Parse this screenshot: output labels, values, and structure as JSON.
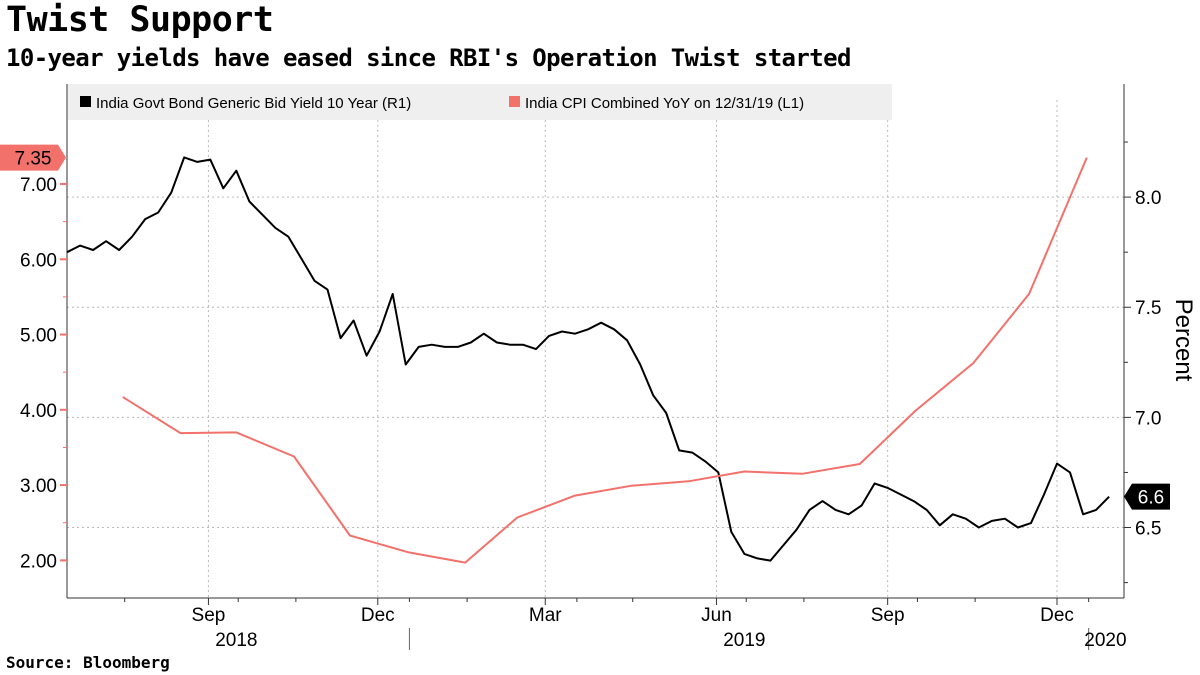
{
  "title": "Twist Support",
  "subtitle": "10-year yields have eased since RBI's Operation Twist started",
  "source": "Source: Bloomberg",
  "colors": {
    "yield": "#000000",
    "cpi": "#f2716b",
    "grid": "#bbbbbb",
    "axis": "#333333"
  },
  "chart_data": {
    "type": "line",
    "legend_placement": "top",
    "grid": true,
    "right_axis_label": "Percent",
    "left_axis": {
      "range": [
        1.5,
        7.85
      ],
      "ticks": [
        2.0,
        3.0,
        4.0,
        5.0,
        6.0,
        7.0
      ],
      "tick_labels": [
        "2.00",
        "3.00",
        "4.00",
        "5.00",
        "6.00",
        "7.00"
      ]
    },
    "right_axis": {
      "range": [
        6.18,
        8.35
      ],
      "ticks": [
        6.5,
        7.0,
        7.5,
        8.0
      ],
      "tick_labels": [
        "6.5",
        "7.0",
        "7.5",
        "8.0"
      ]
    },
    "x_axis": {
      "range": [
        "2018-07-01",
        "2020-01-20"
      ],
      "month_labels": [
        {
          "label": "Sep",
          "date": "2018-09-15"
        },
        {
          "label": "Dec",
          "date": "2018-12-15"
        },
        {
          "label": "Mar",
          "date": "2019-03-15"
        },
        {
          "label": "Jun",
          "date": "2019-06-15"
        },
        {
          "label": "Sep",
          "date": "2019-09-15"
        },
        {
          "label": "Dec",
          "date": "2019-12-15"
        }
      ],
      "year_labels": [
        {
          "label": "2018",
          "date": "2018-09-30"
        },
        {
          "label": "2019",
          "date": "2019-06-30"
        },
        {
          "label": "2020",
          "date": "2020-01-10"
        }
      ],
      "year_separators": [
        "2019-01-01",
        "2020-01-01"
      ],
      "minor_ticks": [
        "2018-08-01",
        "2018-10-01",
        "2018-11-01",
        "2019-01-01",
        "2019-02-01",
        "2019-04-01",
        "2019-05-01",
        "2019-07-01",
        "2019-08-01",
        "2019-10-01",
        "2019-11-01",
        "2020-01-01"
      ]
    },
    "series": [
      {
        "name": "India Govt Bond Generic Bid Yield 10 Year  (R1)",
        "axis": "right",
        "x": [
          "2018-07-01",
          "2018-07-08",
          "2018-07-15",
          "2018-07-22",
          "2018-07-29",
          "2018-08-05",
          "2018-08-12",
          "2018-08-19",
          "2018-08-26",
          "2018-09-02",
          "2018-09-09",
          "2018-09-16",
          "2018-09-23",
          "2018-09-30",
          "2018-10-07",
          "2018-10-14",
          "2018-10-21",
          "2018-10-28",
          "2018-11-04",
          "2018-11-11",
          "2018-11-18",
          "2018-11-25",
          "2018-12-02",
          "2018-12-09",
          "2018-12-16",
          "2018-12-23",
          "2018-12-30",
          "2019-01-06",
          "2019-01-13",
          "2019-01-20",
          "2019-01-27",
          "2019-02-03",
          "2019-02-10",
          "2019-02-17",
          "2019-02-24",
          "2019-03-03",
          "2019-03-10",
          "2019-03-17",
          "2019-03-24",
          "2019-03-31",
          "2019-04-07",
          "2019-04-14",
          "2019-04-21",
          "2019-04-28",
          "2019-05-05",
          "2019-05-12",
          "2019-05-19",
          "2019-05-26",
          "2019-06-02",
          "2019-06-09",
          "2019-06-16",
          "2019-06-23",
          "2019-06-30",
          "2019-07-07",
          "2019-07-14",
          "2019-07-21",
          "2019-07-28",
          "2019-08-04",
          "2019-08-11",
          "2019-08-18",
          "2019-08-25",
          "2019-09-01",
          "2019-09-08",
          "2019-09-15",
          "2019-09-22",
          "2019-09-29",
          "2019-10-06",
          "2019-10-13",
          "2019-10-20",
          "2019-10-27",
          "2019-11-03",
          "2019-11-10",
          "2019-11-17",
          "2019-11-24",
          "2019-12-01",
          "2019-12-08",
          "2019-12-15",
          "2019-12-22",
          "2019-12-29",
          "2020-01-05",
          "2020-01-12"
        ],
        "values": [
          7.75,
          7.78,
          7.76,
          7.8,
          7.76,
          7.82,
          7.9,
          7.93,
          8.02,
          8.18,
          8.16,
          8.17,
          8.04,
          8.12,
          7.98,
          7.92,
          7.86,
          7.82,
          7.72,
          7.62,
          7.58,
          7.36,
          7.44,
          7.28,
          7.39,
          7.56,
          7.24,
          7.32,
          7.33,
          7.32,
          7.32,
          7.34,
          7.38,
          7.34,
          7.33,
          7.33,
          7.31,
          7.37,
          7.39,
          7.38,
          7.4,
          7.43,
          7.4,
          7.35,
          7.24,
          7.1,
          7.02,
          6.85,
          6.84,
          6.8,
          6.75,
          6.48,
          6.38,
          6.36,
          6.35,
          6.42,
          6.49,
          6.58,
          6.62,
          6.58,
          6.56,
          6.6,
          6.7,
          6.68,
          6.65,
          6.62,
          6.58,
          6.51,
          6.56,
          6.54,
          6.5,
          6.53,
          6.54,
          6.5,
          6.52,
          6.65,
          6.79,
          6.75,
          6.56,
          6.58,
          6.64
        ]
      },
      {
        "name": "India CPI Combined YoY  on 12/31/19 (L1)",
        "axis": "left",
        "x": [
          "2018-07-31",
          "2018-08-31",
          "2018-09-30",
          "2018-10-31",
          "2018-11-30",
          "2018-12-31",
          "2019-01-31",
          "2019-02-28",
          "2019-03-31",
          "2019-04-30",
          "2019-05-31",
          "2019-06-30",
          "2019-07-31",
          "2019-08-31",
          "2019-09-30",
          "2019-10-31",
          "2019-11-30",
          "2019-12-31"
        ],
        "values": [
          4.17,
          3.69,
          3.7,
          3.38,
          2.33,
          2.11,
          1.97,
          2.57,
          2.86,
          2.99,
          3.05,
          3.18,
          3.15,
          3.28,
          3.99,
          4.62,
          5.54,
          7.35
        ]
      }
    ],
    "last_value_labels": {
      "left": "7.35",
      "right": "6.6"
    }
  }
}
